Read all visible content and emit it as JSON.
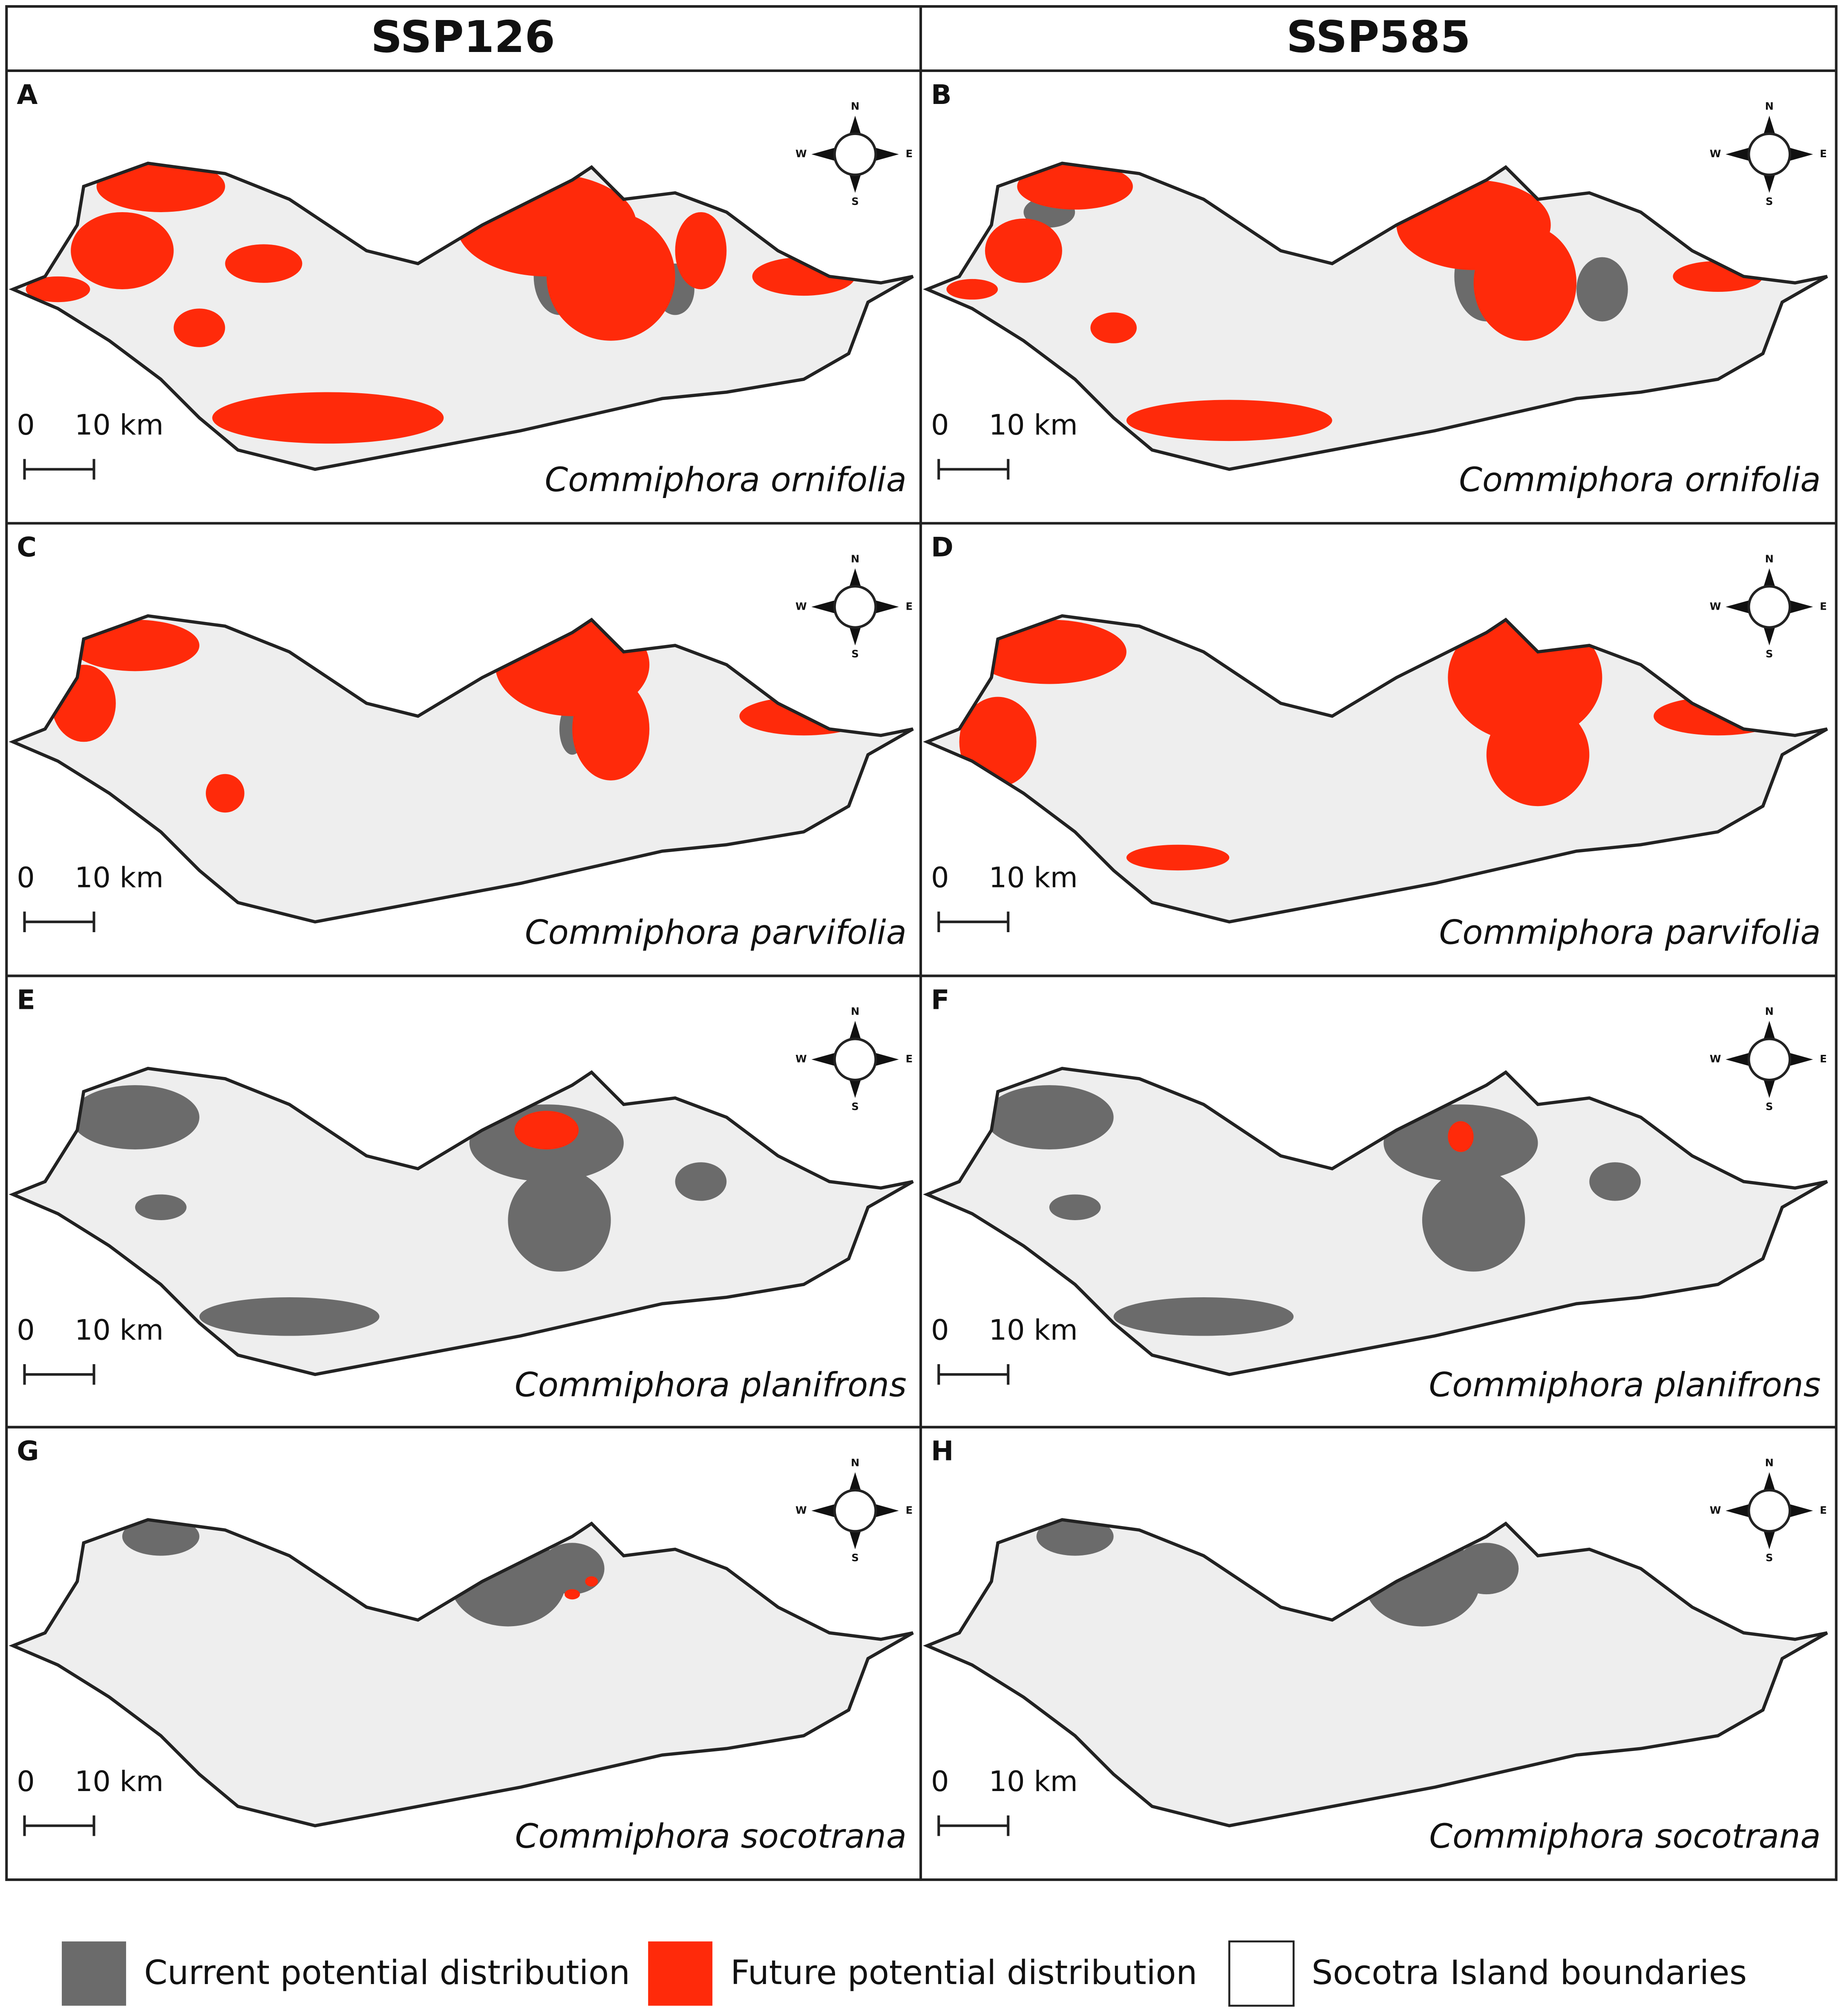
{
  "columns": [
    "SSP126",
    "SSP585"
  ],
  "panels": [
    {
      "letter": "A",
      "species": "Commiphora ornifolia"
    },
    {
      "letter": "B",
      "species": "Commiphora ornifolia"
    },
    {
      "letter": "C",
      "species": "Commiphora parvifolia"
    },
    {
      "letter": "D",
      "species": "Commiphora parvifolia"
    },
    {
      "letter": "E",
      "species": "Commiphora planifrons"
    },
    {
      "letter": "F",
      "species": "Commiphora planifrons"
    },
    {
      "letter": "G",
      "species": "Commiphora socotrana"
    },
    {
      "letter": "H",
      "species": "Commiphora socotrana"
    }
  ],
  "scale_bar": {
    "start": "0",
    "end": "10 km"
  },
  "compass": {
    "n": "N",
    "e": "E",
    "s": "S",
    "w": "W"
  },
  "legend": [
    {
      "label": "Current potential distribution",
      "color": "#6b6b6b"
    },
    {
      "label": "Future potential distribution",
      "color": "#ff2a0a"
    },
    {
      "label": "Socotra Island boundaries",
      "color": "#ffffff"
    }
  ]
}
